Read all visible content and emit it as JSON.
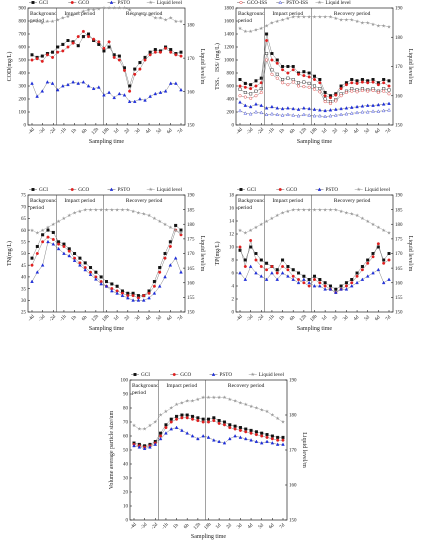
{
  "chart_data": [
    {
      "type": "line",
      "xlabel": "Sampling time",
      "ylabel": "COD(mg/L)",
      "y2label": "Liquid level/m",
      "ylim": [
        0,
        900
      ],
      "yticks": [
        0,
        100,
        200,
        300,
        400,
        500,
        600,
        700,
        800,
        900
      ],
      "y2lim": [
        150,
        185
      ],
      "y2ticks": [
        150,
        160,
        170,
        180
      ],
      "xtick_labels": [
        "-4d",
        "-3d",
        "-2d",
        "-1h",
        "1h",
        "6h",
        "12h",
        "18h",
        "1d",
        "2d",
        "3d",
        "4d",
        "5d",
        "6d",
        "7d"
      ],
      "periods": [
        {
          "label": "Background period",
          "start": 0,
          "end": 0.18
        },
        {
          "label": "Impact period",
          "start": 0.18,
          "end": 0.48
        },
        {
          "label": "Recovery period",
          "start": 0.48,
          "end": 1
        }
      ],
      "legend": [
        "GCI",
        "GCO",
        "PSTO",
        "Liquid level"
      ],
      "series": [
        {
          "name": "GCI",
          "values": [
            540,
            520,
            530,
            550,
            560,
            600,
            620,
            650,
            640,
            610,
            680,
            700,
            650,
            620,
            570,
            600,
            540,
            530,
            440,
            300,
            430,
            480,
            520,
            560,
            580,
            570,
            600,
            580,
            550,
            560
          ]
        },
        {
          "name": "GCO",
          "values": [
            500,
            510,
            490,
            540,
            520,
            560,
            570,
            600,
            630,
            680,
            720,
            680,
            660,
            640,
            590,
            640,
            520,
            500,
            420,
            260,
            390,
            430,
            500,
            540,
            560,
            560,
            590,
            560,
            540,
            530
          ]
        },
        {
          "name": "PSTO",
          "values": [
            320,
            220,
            260,
            330,
            320,
            270,
            300,
            310,
            330,
            320,
            330,
            300,
            280,
            290,
            230,
            250,
            210,
            240,
            230,
            180,
            180,
            200,
            190,
            220,
            240,
            250,
            260,
            320,
            320,
            270
          ]
        },
        {
          "name": "Liquid level",
          "axis": "right",
          "values": [
            181,
            181,
            180.5,
            181,
            181,
            181.5,
            182,
            182.5,
            183,
            183.5,
            184,
            184.5,
            184.5,
            184.8,
            185,
            185,
            185,
            185,
            185,
            184.5,
            183,
            183,
            183,
            183,
            182,
            182,
            181.5,
            182,
            181,
            181
          ]
        }
      ]
    },
    {
      "type": "line",
      "xlabel": "Sampling time",
      "ylabel": "TSS、 ISS/ (mg/L)",
      "y2label": "Liquid level/m",
      "ylim": [
        0,
        1800
      ],
      "yticks": [
        0,
        200,
        400,
        600,
        800,
        1000,
        1200,
        1400,
        1600,
        1800
      ],
      "y2lim": [
        150,
        190
      ],
      "y2ticks": [
        150,
        160,
        170,
        180,
        190
      ],
      "xtick_labels": [
        "-4d",
        "-3d",
        "-2d",
        "-1h",
        "1h",
        "6h",
        "12h",
        "18h",
        "1d",
        "2d",
        "3d",
        "4d",
        "5d",
        "6d",
        "7d"
      ],
      "periods": [
        {
          "label": "Background period",
          "start": 0,
          "end": 0.18
        },
        {
          "label": "Impact period",
          "start": 0.18,
          "end": 0.48
        },
        {
          "label": "Recovery period",
          "start": 0.48,
          "end": 1
        }
      ],
      "legend": [
        "GCI-SS",
        "GCO-SS",
        "PSTO-SS",
        "GCI-ISS",
        "GCO-ISS",
        "PSTO-ISS",
        "Liquid level"
      ],
      "series": [
        {
          "name": "GCI-SS",
          "values": [
            700,
            640,
            620,
            680,
            720,
            1400,
            1100,
            1000,
            900,
            900,
            900,
            800,
            820,
            800,
            750,
            700,
            500,
            450,
            480,
            600,
            650,
            700,
            680,
            700,
            680,
            700,
            650,
            700,
            680
          ]
        },
        {
          "name": "GCO-SS",
          "values": [
            600,
            580,
            560,
            600,
            650,
            1300,
            1000,
            950,
            850,
            800,
            850,
            780,
            760,
            740,
            700,
            650,
            450,
            420,
            460,
            560,
            620,
            650,
            640,
            660,
            650,
            660,
            620,
            650,
            600
          ]
        },
        {
          "name": "PSTO-SS",
          "values": [
            350,
            300,
            280,
            320,
            300,
            260,
            280,
            260,
            250,
            260,
            250,
            240,
            260,
            250,
            240,
            230,
            220,
            230,
            240,
            250,
            260,
            270,
            280,
            290,
            300,
            300,
            310,
            320,
            330
          ]
        },
        {
          "name": "GCI-ISS",
          "values": [
            550,
            500,
            480,
            520,
            560,
            1100,
            850,
            780,
            700,
            720,
            700,
            650,
            660,
            640,
            600,
            560,
            400,
            360,
            390,
            480,
            520,
            560,
            540,
            560,
            540,
            560,
            520,
            560,
            540
          ]
        },
        {
          "name": "GCO-ISS",
          "values": [
            450,
            430,
            410,
            450,
            500,
            1000,
            780,
            720,
            650,
            620,
            660,
            600,
            590,
            580,
            550,
            510,
            360,
            330,
            370,
            450,
            500,
            520,
            510,
            530,
            520,
            530,
            500,
            520,
            480
          ]
        },
        {
          "name": "PSTO-ISS",
          "values": [
            220,
            180,
            170,
            200,
            190,
            160,
            170,
            160,
            150,
            160,
            150,
            140,
            160,
            150,
            140,
            140,
            130,
            140,
            150,
            160,
            170,
            180,
            190,
            200,
            200,
            210,
            210,
            220,
            230
          ]
        },
        {
          "name": "Liquid level",
          "axis": "right",
          "values": [
            183,
            182,
            182,
            182.5,
            183,
            184,
            185,
            185.5,
            186,
            186.5,
            187,
            187,
            187,
            187,
            187,
            187,
            187,
            187,
            186.5,
            186,
            186,
            186,
            185.5,
            185,
            185,
            184.5,
            184,
            184,
            183.5
          ]
        }
      ]
    },
    {
      "type": "line",
      "xlabel": "Sampling time",
      "ylabel": "TN(mg/L)",
      "y2label": "Liquid level/m",
      "ylim": [
        25,
        75
      ],
      "yticks": [
        25,
        30,
        35,
        40,
        45,
        50,
        55,
        60,
        65,
        70,
        75
      ],
      "y2lim": [
        150,
        190
      ],
      "y2ticks": [
        150,
        155,
        160,
        165,
        170,
        175,
        180,
        185,
        190
      ],
      "xtick_labels": [
        "-4d",
        "-3d",
        "-2d",
        "-1h",
        "1h",
        "6h",
        "12h",
        "18h",
        "1d",
        "2d",
        "3d",
        "4d",
        "5d",
        "6d",
        "7d"
      ],
      "periods": [
        {
          "label": "Background period",
          "start": 0,
          "end": 0.18
        },
        {
          "label": "Impact period",
          "start": 0.18,
          "end": 0.48
        },
        {
          "label": "Recovery period",
          "start": 0.48,
          "end": 1
        }
      ],
      "legend": [
        "GCI",
        "GCO",
        "PSTO",
        "Liquid level"
      ],
      "series": [
        {
          "name": "GCI",
          "values": [
            48,
            53,
            58,
            60,
            59,
            55,
            54,
            52,
            50,
            48,
            46,
            44,
            42,
            40,
            38,
            37,
            36,
            34,
            33,
            33,
            32,
            32,
            34,
            38,
            44,
            50,
            55,
            62,
            60
          ]
        },
        {
          "name": "GCO",
          "values": [
            45,
            50,
            55,
            57,
            56,
            54,
            53,
            51,
            48,
            46,
            44,
            42,
            40,
            38,
            36,
            35,
            34,
            33,
            32,
            32,
            31,
            32,
            33,
            36,
            42,
            48,
            53,
            60,
            58
          ]
        },
        {
          "name": "PSTO",
          "values": [
            38,
            42,
            45,
            55,
            54,
            52,
            50,
            49,
            47,
            45,
            43,
            41,
            39,
            37,
            36,
            34,
            33,
            32,
            31,
            30,
            30,
            30,
            31,
            33,
            36,
            40,
            45,
            48,
            42
          ]
        },
        {
          "name": "Liquid level",
          "axis": "right",
          "values": [
            178,
            177,
            178,
            179,
            180,
            181,
            182,
            183,
            184,
            184.5,
            185,
            185,
            185,
            185,
            185,
            185,
            185,
            185,
            185,
            184.5,
            184,
            183.5,
            183,
            182,
            181,
            180,
            179,
            178,
            177
          ]
        }
      ]
    },
    {
      "type": "line",
      "xlabel": "Sampling time",
      "ylabel": "TP(mg/L)",
      "y2label": "Liquid level/m",
      "ylim": [
        0,
        18
      ],
      "yticks": [
        0,
        2,
        4,
        6,
        8,
        10,
        12,
        14,
        16,
        18
      ],
      "y2lim": [
        150,
        190
      ],
      "y2ticks": [
        150,
        155,
        160,
        165,
        170,
        175,
        180,
        185,
        190
      ],
      "xtick_labels": [
        "-4d",
        "-3d",
        "-2d",
        "-1h",
        "1h",
        "6h",
        "12h",
        "18h",
        "1d",
        "2d",
        "3d",
        "4d",
        "5d",
        "6d",
        "7d"
      ],
      "periods": [
        {
          "label": "Background period",
          "start": 0,
          "end": 0.18
        },
        {
          "label": "Impact period",
          "start": 0.18,
          "end": 0.48
        },
        {
          "label": "Recovery period",
          "start": 0.48,
          "end": 1
        }
      ],
      "legend": [
        "GCI",
        "GCO",
        "PSTO",
        "Liquid level"
      ],
      "series": [
        {
          "name": "GCI",
          "values": [
            9.5,
            8,
            10,
            9,
            8,
            7.5,
            7,
            6.5,
            8,
            7,
            6.5,
            6,
            5.5,
            5,
            5.5,
            5,
            4.5,
            4,
            3.5,
            4,
            4.5,
            5,
            6,
            7,
            8,
            9,
            10,
            8,
            9
          ]
        },
        {
          "name": "GCO",
          "values": [
            10,
            7,
            11,
            8,
            7,
            6.5,
            7,
            6,
            7,
            6.5,
            5.5,
            5,
            4.5,
            4,
            5,
            4.5,
            4,
            3.5,
            3,
            3.5,
            4,
            4.5,
            5.5,
            6.5,
            7.5,
            8.5,
            10.5,
            7.5,
            8
          ]
        },
        {
          "name": "PSTO",
          "values": [
            6,
            5,
            7,
            6,
            5.5,
            5,
            6,
            5,
            6,
            5.5,
            5,
            4.5,
            5,
            4.5,
            4,
            4,
            3.5,
            3.5,
            3,
            3.5,
            3.5,
            4,
            4.5,
            5,
            5.5,
            6,
            6.5,
            4.5,
            5
          ]
        },
        {
          "name": "Liquid level",
          "axis": "right",
          "values": [
            178,
            177,
            178,
            179,
            180,
            181,
            182,
            183,
            184,
            184.5,
            185,
            185,
            185,
            185,
            185,
            185,
            185,
            185,
            185,
            184.5,
            184,
            183.5,
            183,
            182,
            181,
            180,
            179,
            178,
            177
          ]
        }
      ]
    },
    {
      "type": "line",
      "xlabel": "Sampling time",
      "ylabel": "Volume average particle size/um",
      "y2label": "Liquid level/m",
      "ylim": [
        0,
        100
      ],
      "yticks": [
        0,
        10,
        20,
        30,
        40,
        50,
        60,
        70,
        80,
        90,
        100
      ],
      "y2lim": [
        150,
        190
      ],
      "y2ticks": [
        150,
        160,
        170,
        180,
        190
      ],
      "xtick_labels": [
        "-4d",
        "-3d",
        "-2d",
        "-1h",
        "1h",
        "6h",
        "12h",
        "18h",
        "1d",
        "2d",
        "3d",
        "4d",
        "5d",
        "6d",
        "7d"
      ],
      "periods": [
        {
          "label": "Background period",
          "start": 0,
          "end": 0.18
        },
        {
          "label": "Impact period",
          "start": 0.18,
          "end": 0.48
        },
        {
          "label": "Recovery period",
          "start": 0.48,
          "end": 1
        }
      ],
      "legend": [
        "GCI",
        "GCO",
        "PSTO",
        "Liquid level"
      ],
      "series": [
        {
          "name": "GCI",
          "values": [
            55,
            54,
            53,
            54,
            56,
            62,
            68,
            72,
            74,
            75,
            75,
            74,
            73,
            72,
            72,
            73,
            71,
            70,
            68,
            67,
            66,
            65,
            64,
            63,
            62,
            61,
            60,
            59,
            59
          ]
        },
        {
          "name": "GCO",
          "values": [
            54,
            53,
            52,
            53,
            55,
            60,
            66,
            70,
            72,
            73,
            73,
            72,
            71,
            70,
            70,
            71,
            69,
            68,
            66,
            65,
            64,
            63,
            62,
            61,
            60,
            59,
            58,
            57,
            57
          ]
        },
        {
          "name": "PSTO",
          "values": [
            53,
            52,
            51,
            52,
            54,
            58,
            62,
            65,
            66,
            64,
            62,
            60,
            58,
            60,
            59,
            57,
            56,
            55,
            58,
            60,
            59,
            58,
            57,
            56,
            55,
            56,
            55,
            54,
            54
          ]
        },
        {
          "name": "Liquid level",
          "axis": "right",
          "values": [
            177,
            176,
            176,
            177,
            178,
            180,
            181,
            182,
            183,
            183.5,
            184,
            184,
            184.5,
            185,
            185,
            185,
            185,
            185,
            184.5,
            184,
            183.5,
            183,
            182.5,
            182,
            181.5,
            181,
            180,
            179,
            178
          ]
        }
      ]
    }
  ],
  "colors": {
    "GCI": "#111111",
    "GCO": "#e02020",
    "PSTO": "#1f2fd8",
    "level": "#9a9a9a",
    "line": "#666666"
  }
}
